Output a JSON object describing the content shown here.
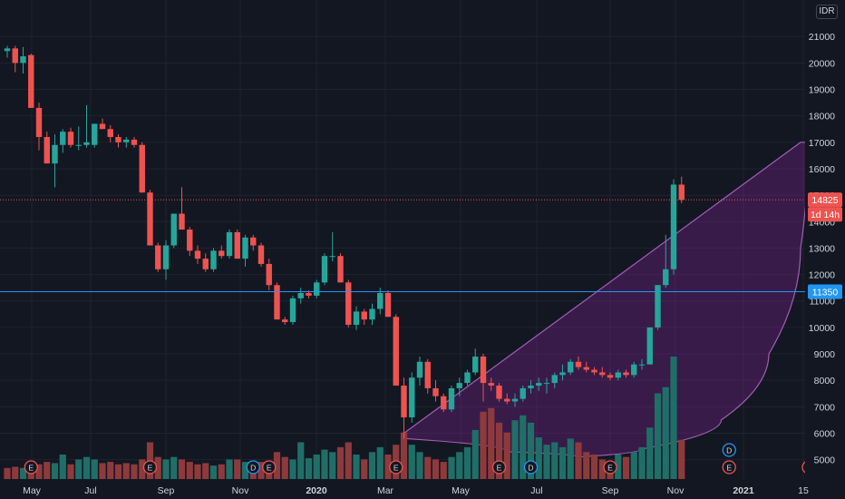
{
  "currency": "IDR",
  "colors": {
    "background": "#131722",
    "grid": "#1f2230",
    "up": "#26a69a",
    "down": "#ef5350",
    "up_volume": "#1f6f68",
    "down_volume": "#8e3a3c",
    "hline": "#2196f3",
    "pattern_fill": "#9c27b0",
    "pattern_stroke": "#a05fb4",
    "text": "#d1d4dc"
  },
  "price_tags": {
    "last_price": "14825",
    "countdown": "1d 14h",
    "horizontal_line": "11350"
  },
  "chart_data": {
    "type": "candlestick",
    "interval": "1W",
    "y_axis": {
      "ticks": [
        "21000",
        "20000",
        "19000",
        "18000",
        "17000",
        "16000",
        "15000",
        "14000",
        "13000",
        "12000",
        "11000",
        "10000",
        "9000",
        "8000",
        "7000",
        "6000",
        "5000"
      ],
      "range": [
        4500,
        21900
      ]
    },
    "x_axis": {
      "ticks": [
        "May",
        "Jul",
        "Sep",
        "Nov",
        "2020",
        "Mar",
        "May",
        "Jul",
        "Sep",
        "Nov",
        "2021",
        "15"
      ]
    },
    "horizontal_line": 11350,
    "last_price": 14825,
    "candles": [
      [
        20450,
        20650,
        20200,
        20550
      ],
      [
        20550,
        20650,
        19650,
        20000
      ],
      [
        20000,
        20600,
        19600,
        20250
      ],
      [
        20300,
        20350,
        18300,
        18300
      ],
      [
        18300,
        18500,
        16700,
        17200
      ],
      [
        17200,
        17400,
        16200,
        16200
      ],
      [
        16200,
        17300,
        15300,
        16900
      ],
      [
        16900,
        17500,
        16600,
        17400
      ],
      [
        17400,
        17550,
        16800,
        16900
      ],
      [
        16900,
        17600,
        16700,
        16900
      ],
      [
        16900,
        18400,
        16800,
        17000
      ],
      [
        16900,
        17700,
        16800,
        17700
      ],
      [
        17700,
        17900,
        17500,
        17500
      ],
      [
        17500,
        17650,
        17000,
        17200
      ],
      [
        17200,
        17300,
        16800,
        17000
      ],
      [
        17000,
        17200,
        16800,
        17100
      ],
      [
        17100,
        17200,
        16800,
        16900
      ],
      [
        16900,
        17000,
        15100,
        15100
      ],
      [
        15100,
        15200,
        13100,
        13100
      ],
      [
        13100,
        13200,
        12100,
        12200
      ],
      [
        12200,
        13300,
        11800,
        13100
      ],
      [
        13100,
        14300,
        13000,
        14300
      ],
      [
        14300,
        15300,
        13700,
        13700
      ],
      [
        13700,
        13800,
        12700,
        12900
      ],
      [
        12900,
        13100,
        12400,
        12600
      ],
      [
        12600,
        12800,
        12100,
        12200
      ],
      [
        12200,
        13000,
        12100,
        12900
      ],
      [
        12900,
        13100,
        12600,
        12700
      ],
      [
        12700,
        13700,
        12600,
        13600
      ],
      [
        13600,
        13700,
        12600,
        12600
      ],
      [
        12600,
        13500,
        12300,
        13400
      ],
      [
        13400,
        13500,
        12900,
        13100
      ],
      [
        13100,
        13200,
        12300,
        12400
      ],
      [
        12400,
        12600,
        11400,
        11600
      ],
      [
        11600,
        11700,
        10300,
        10300
      ],
      [
        10300,
        10400,
        10100,
        10200
      ],
      [
        10200,
        11200,
        10100,
        11100
      ],
      [
        11100,
        11500,
        10900,
        11300
      ],
      [
        11300,
        11400,
        11100,
        11200
      ],
      [
        11200,
        11800,
        11100,
        11700
      ],
      [
        11700,
        12800,
        11600,
        12700
      ],
      [
        12700,
        13600,
        12500,
        12700
      ],
      [
        12700,
        12800,
        11700,
        11700
      ],
      [
        11700,
        11800,
        10000,
        10100
      ],
      [
        10100,
        10800,
        9900,
        10600
      ],
      [
        10600,
        10700,
        10100,
        10300
      ],
      [
        10300,
        10900,
        10100,
        10700
      ],
      [
        10700,
        11500,
        10500,
        11300
      ],
      [
        11300,
        11400,
        10400,
        10400
      ],
      [
        10400,
        10500,
        7800,
        7800
      ],
      [
        7800,
        8100,
        5800,
        6600
      ],
      [
        6600,
        8300,
        6400,
        8100
      ],
      [
        8100,
        8900,
        7800,
        8700
      ],
      [
        8700,
        8800,
        7500,
        7700
      ],
      [
        7700,
        8000,
        7200,
        7400
      ],
      [
        7400,
        7500,
        6800,
        6900
      ],
      [
        6900,
        7800,
        6800,
        7700
      ],
      [
        7700,
        8100,
        7400,
        7900
      ],
      [
        7900,
        8400,
        7800,
        8300
      ],
      [
        8300,
        9200,
        8200,
        8900
      ],
      [
        8900,
        9000,
        7200,
        7900
      ],
      [
        7900,
        8100,
        7600,
        7800
      ],
      [
        7800,
        7900,
        7200,
        7300
      ],
      [
        7300,
        7500,
        7100,
        7200
      ],
      [
        7200,
        7500,
        7000,
        7300
      ],
      [
        7300,
        7800,
        7200,
        7700
      ],
      [
        7700,
        8000,
        7500,
        7800
      ],
      [
        7800,
        8100,
        7600,
        7900
      ],
      [
        7900,
        8100,
        7500,
        7900
      ],
      [
        7900,
        8300,
        7700,
        8200
      ],
      [
        8200,
        8600,
        8000,
        8300
      ],
      [
        8300,
        8800,
        8200,
        8700
      ],
      [
        8700,
        8900,
        8400,
        8500
      ],
      [
        8500,
        8700,
        8300,
        8400
      ],
      [
        8400,
        8500,
        8200,
        8300
      ],
      [
        8300,
        8500,
        8100,
        8200
      ],
      [
        8200,
        8300,
        8000,
        8100
      ],
      [
        8100,
        8400,
        8000,
        8300
      ],
      [
        8300,
        8400,
        8100,
        8200
      ],
      [
        8200,
        8700,
        8100,
        8600
      ],
      [
        8600,
        8800,
        8400,
        8600
      ],
      [
        8600,
        10000,
        8600,
        10000
      ],
      [
        10000,
        11600,
        9900,
        11600
      ],
      [
        11600,
        13500,
        11500,
        12200
      ],
      [
        12200,
        15600,
        12000,
        15400
      ],
      [
        15400,
        15700,
        14700,
        14825
      ]
    ],
    "volume": [
      [
        0.09,
        "d"
      ],
      [
        0.1,
        "d"
      ],
      [
        0.09,
        "u"
      ],
      [
        0.1,
        "d"
      ],
      [
        0.12,
        "d"
      ],
      [
        0.14,
        "d"
      ],
      [
        0.13,
        "u"
      ],
      [
        0.2,
        "u"
      ],
      [
        0.12,
        "d"
      ],
      [
        0.16,
        "u"
      ],
      [
        0.18,
        "u"
      ],
      [
        0.16,
        "u"
      ],
      [
        0.13,
        "d"
      ],
      [
        0.14,
        "d"
      ],
      [
        0.12,
        "d"
      ],
      [
        0.13,
        "d"
      ],
      [
        0.12,
        "d"
      ],
      [
        0.16,
        "d"
      ],
      [
        0.3,
        "d"
      ],
      [
        0.18,
        "d"
      ],
      [
        0.16,
        "u"
      ],
      [
        0.18,
        "u"
      ],
      [
        0.16,
        "d"
      ],
      [
        0.14,
        "d"
      ],
      [
        0.12,
        "d"
      ],
      [
        0.13,
        "d"
      ],
      [
        0.11,
        "u"
      ],
      [
        0.12,
        "d"
      ],
      [
        0.16,
        "u"
      ],
      [
        0.16,
        "d"
      ],
      [
        0.14,
        "u"
      ],
      [
        0.12,
        "d"
      ],
      [
        0.14,
        "d"
      ],
      [
        0.15,
        "d"
      ],
      [
        0.22,
        "d"
      ],
      [
        0.18,
        "d"
      ],
      [
        0.16,
        "u"
      ],
      [
        0.3,
        "u"
      ],
      [
        0.17,
        "u"
      ],
      [
        0.2,
        "u"
      ],
      [
        0.24,
        "u"
      ],
      [
        0.22,
        "u"
      ],
      [
        0.26,
        "d"
      ],
      [
        0.3,
        "d"
      ],
      [
        0.2,
        "u"
      ],
      [
        0.16,
        "d"
      ],
      [
        0.22,
        "u"
      ],
      [
        0.26,
        "u"
      ],
      [
        0.2,
        "d"
      ],
      [
        0.28,
        "d"
      ],
      [
        0.38,
        "d"
      ],
      [
        0.28,
        "u"
      ],
      [
        0.22,
        "u"
      ],
      [
        0.18,
        "d"
      ],
      [
        0.16,
        "d"
      ],
      [
        0.14,
        "d"
      ],
      [
        0.18,
        "u"
      ],
      [
        0.22,
        "u"
      ],
      [
        0.26,
        "u"
      ],
      [
        0.4,
        "u"
      ],
      [
        0.55,
        "d"
      ],
      [
        0.58,
        "d"
      ],
      [
        0.46,
        "d"
      ],
      [
        0.38,
        "d"
      ],
      [
        0.48,
        "u"
      ],
      [
        0.52,
        "u"
      ],
      [
        0.46,
        "u"
      ],
      [
        0.34,
        "u"
      ],
      [
        0.28,
        "u"
      ],
      [
        0.3,
        "u"
      ],
      [
        0.26,
        "u"
      ],
      [
        0.33,
        "u"
      ],
      [
        0.3,
        "d"
      ],
      [
        0.22,
        "d"
      ],
      [
        0.2,
        "d"
      ],
      [
        0.16,
        "d"
      ],
      [
        0.12,
        "d"
      ],
      [
        0.2,
        "u"
      ],
      [
        0.18,
        "d"
      ],
      [
        0.22,
        "u"
      ],
      [
        0.26,
        "u"
      ],
      [
        0.42,
        "u"
      ],
      [
        0.7,
        "u"
      ],
      [
        0.75,
        "u"
      ],
      [
        1.0,
        "u"
      ],
      [
        0.32,
        "d"
      ]
    ],
    "event_markers": [
      {
        "label": "E",
        "x_index": 3
      },
      {
        "label": "E",
        "x_index": 18
      },
      {
        "label": "D",
        "x_index": 31
      },
      {
        "label": "E",
        "x_index": 33
      },
      {
        "label": "E",
        "x_index": 49
      },
      {
        "label": "E",
        "x_index": 62
      },
      {
        "label": "D",
        "x_index": 66
      },
      {
        "label": "E",
        "x_index": 76
      },
      {
        "label": "D",
        "x_index": 91
      },
      {
        "label": "E",
        "x_index": 91
      }
    ],
    "cup_pattern": {
      "upper_line": [
        [
          50,
          6000
        ],
        [
          100,
          17000
        ]
      ],
      "lower_arc_points": [
        [
          50,
          5800
        ],
        [
          63,
          5300
        ],
        [
          72,
          5100
        ],
        [
          80,
          5400
        ],
        [
          90,
          6500
        ],
        [
          96,
          9000
        ],
        [
          100,
          13000
        ],
        [
          101,
          17000
        ]
      ]
    }
  }
}
